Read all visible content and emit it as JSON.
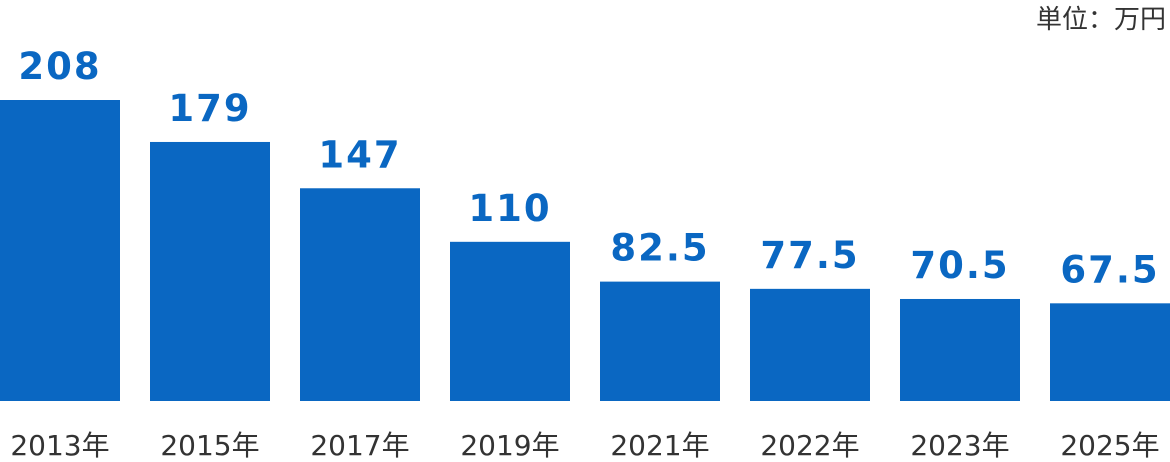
{
  "chart_data": {
    "type": "bar",
    "title": "",
    "unit": "単位：万円",
    "xlabel": "",
    "ylabel": "",
    "categories": [
      "2013年",
      "2015年",
      "2017年",
      "2019年",
      "2021年",
      "2022年",
      "2023年",
      "2025年"
    ],
    "values": [
      208,
      179,
      147,
      110,
      82.5,
      77.5,
      70.5,
      67.5
    ],
    "value_labels": [
      "208",
      "179",
      "147",
      "110",
      "82.5",
      "77.5",
      "70.5",
      "67.5"
    ],
    "grid": false,
    "legend": "none",
    "colors": {
      "bar": "#0a67c2",
      "value_label": "#0a67c2",
      "text": "#333333"
    }
  }
}
